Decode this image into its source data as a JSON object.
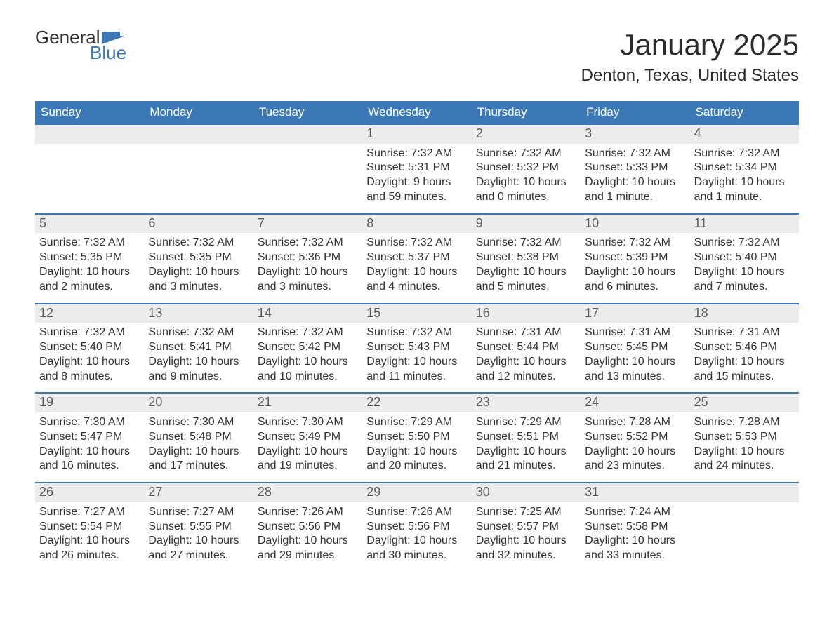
{
  "logo": {
    "text_top": "General",
    "text_bottom": "Blue",
    "accent_color": "#3b78b5"
  },
  "header": {
    "title": "January 2025",
    "location": "Denton, Texas, United States"
  },
  "colors": {
    "header_bg": "#3b78b5",
    "header_text": "#ffffff",
    "daynum_bg": "#ececec",
    "daynum_text": "#5a5a5a",
    "body_text": "#333333",
    "divider": "#3b78b5",
    "background": "#ffffff"
  },
  "typography": {
    "title_fontsize": 42,
    "subtitle_fontsize": 24,
    "weekday_fontsize": 17,
    "daynum_fontsize": 18,
    "body_fontsize": 16,
    "font_family": "Arial"
  },
  "calendar": {
    "type": "month-grid",
    "columns": 7,
    "weekdays": [
      "Sunday",
      "Monday",
      "Tuesday",
      "Wednesday",
      "Thursday",
      "Friday",
      "Saturday"
    ],
    "weeks": [
      [
        null,
        null,
        null,
        {
          "day": "1",
          "sunrise": "Sunrise: 7:32 AM",
          "sunset": "Sunset: 5:31 PM",
          "daylight1": "Daylight: 9 hours",
          "daylight2": "and 59 minutes."
        },
        {
          "day": "2",
          "sunrise": "Sunrise: 7:32 AM",
          "sunset": "Sunset: 5:32 PM",
          "daylight1": "Daylight: 10 hours",
          "daylight2": "and 0 minutes."
        },
        {
          "day": "3",
          "sunrise": "Sunrise: 7:32 AM",
          "sunset": "Sunset: 5:33 PM",
          "daylight1": "Daylight: 10 hours",
          "daylight2": "and 1 minute."
        },
        {
          "day": "4",
          "sunrise": "Sunrise: 7:32 AM",
          "sunset": "Sunset: 5:34 PM",
          "daylight1": "Daylight: 10 hours",
          "daylight2": "and 1 minute."
        }
      ],
      [
        {
          "day": "5",
          "sunrise": "Sunrise: 7:32 AM",
          "sunset": "Sunset: 5:35 PM",
          "daylight1": "Daylight: 10 hours",
          "daylight2": "and 2 minutes."
        },
        {
          "day": "6",
          "sunrise": "Sunrise: 7:32 AM",
          "sunset": "Sunset: 5:35 PM",
          "daylight1": "Daylight: 10 hours",
          "daylight2": "and 3 minutes."
        },
        {
          "day": "7",
          "sunrise": "Sunrise: 7:32 AM",
          "sunset": "Sunset: 5:36 PM",
          "daylight1": "Daylight: 10 hours",
          "daylight2": "and 3 minutes."
        },
        {
          "day": "8",
          "sunrise": "Sunrise: 7:32 AM",
          "sunset": "Sunset: 5:37 PM",
          "daylight1": "Daylight: 10 hours",
          "daylight2": "and 4 minutes."
        },
        {
          "day": "9",
          "sunrise": "Sunrise: 7:32 AM",
          "sunset": "Sunset: 5:38 PM",
          "daylight1": "Daylight: 10 hours",
          "daylight2": "and 5 minutes."
        },
        {
          "day": "10",
          "sunrise": "Sunrise: 7:32 AM",
          "sunset": "Sunset: 5:39 PM",
          "daylight1": "Daylight: 10 hours",
          "daylight2": "and 6 minutes."
        },
        {
          "day": "11",
          "sunrise": "Sunrise: 7:32 AM",
          "sunset": "Sunset: 5:40 PM",
          "daylight1": "Daylight: 10 hours",
          "daylight2": "and 7 minutes."
        }
      ],
      [
        {
          "day": "12",
          "sunrise": "Sunrise: 7:32 AM",
          "sunset": "Sunset: 5:40 PM",
          "daylight1": "Daylight: 10 hours",
          "daylight2": "and 8 minutes."
        },
        {
          "day": "13",
          "sunrise": "Sunrise: 7:32 AM",
          "sunset": "Sunset: 5:41 PM",
          "daylight1": "Daylight: 10 hours",
          "daylight2": "and 9 minutes."
        },
        {
          "day": "14",
          "sunrise": "Sunrise: 7:32 AM",
          "sunset": "Sunset: 5:42 PM",
          "daylight1": "Daylight: 10 hours",
          "daylight2": "and 10 minutes."
        },
        {
          "day": "15",
          "sunrise": "Sunrise: 7:32 AM",
          "sunset": "Sunset: 5:43 PM",
          "daylight1": "Daylight: 10 hours",
          "daylight2": "and 11 minutes."
        },
        {
          "day": "16",
          "sunrise": "Sunrise: 7:31 AM",
          "sunset": "Sunset: 5:44 PM",
          "daylight1": "Daylight: 10 hours",
          "daylight2": "and 12 minutes."
        },
        {
          "day": "17",
          "sunrise": "Sunrise: 7:31 AM",
          "sunset": "Sunset: 5:45 PM",
          "daylight1": "Daylight: 10 hours",
          "daylight2": "and 13 minutes."
        },
        {
          "day": "18",
          "sunrise": "Sunrise: 7:31 AM",
          "sunset": "Sunset: 5:46 PM",
          "daylight1": "Daylight: 10 hours",
          "daylight2": "and 15 minutes."
        }
      ],
      [
        {
          "day": "19",
          "sunrise": "Sunrise: 7:30 AM",
          "sunset": "Sunset: 5:47 PM",
          "daylight1": "Daylight: 10 hours",
          "daylight2": "and 16 minutes."
        },
        {
          "day": "20",
          "sunrise": "Sunrise: 7:30 AM",
          "sunset": "Sunset: 5:48 PM",
          "daylight1": "Daylight: 10 hours",
          "daylight2": "and 17 minutes."
        },
        {
          "day": "21",
          "sunrise": "Sunrise: 7:30 AM",
          "sunset": "Sunset: 5:49 PM",
          "daylight1": "Daylight: 10 hours",
          "daylight2": "and 19 minutes."
        },
        {
          "day": "22",
          "sunrise": "Sunrise: 7:29 AM",
          "sunset": "Sunset: 5:50 PM",
          "daylight1": "Daylight: 10 hours",
          "daylight2": "and 20 minutes."
        },
        {
          "day": "23",
          "sunrise": "Sunrise: 7:29 AM",
          "sunset": "Sunset: 5:51 PM",
          "daylight1": "Daylight: 10 hours",
          "daylight2": "and 21 minutes."
        },
        {
          "day": "24",
          "sunrise": "Sunrise: 7:28 AM",
          "sunset": "Sunset: 5:52 PM",
          "daylight1": "Daylight: 10 hours",
          "daylight2": "and 23 minutes."
        },
        {
          "day": "25",
          "sunrise": "Sunrise: 7:28 AM",
          "sunset": "Sunset: 5:53 PM",
          "daylight1": "Daylight: 10 hours",
          "daylight2": "and 24 minutes."
        }
      ],
      [
        {
          "day": "26",
          "sunrise": "Sunrise: 7:27 AM",
          "sunset": "Sunset: 5:54 PM",
          "daylight1": "Daylight: 10 hours",
          "daylight2": "and 26 minutes."
        },
        {
          "day": "27",
          "sunrise": "Sunrise: 7:27 AM",
          "sunset": "Sunset: 5:55 PM",
          "daylight1": "Daylight: 10 hours",
          "daylight2": "and 27 minutes."
        },
        {
          "day": "28",
          "sunrise": "Sunrise: 7:26 AM",
          "sunset": "Sunset: 5:56 PM",
          "daylight1": "Daylight: 10 hours",
          "daylight2": "and 29 minutes."
        },
        {
          "day": "29",
          "sunrise": "Sunrise: 7:26 AM",
          "sunset": "Sunset: 5:56 PM",
          "daylight1": "Daylight: 10 hours",
          "daylight2": "and 30 minutes."
        },
        {
          "day": "30",
          "sunrise": "Sunrise: 7:25 AM",
          "sunset": "Sunset: 5:57 PM",
          "daylight1": "Daylight: 10 hours",
          "daylight2": "and 32 minutes."
        },
        {
          "day": "31",
          "sunrise": "Sunrise: 7:24 AM",
          "sunset": "Sunset: 5:58 PM",
          "daylight1": "Daylight: 10 hours",
          "daylight2": "and 33 minutes."
        },
        null
      ]
    ]
  }
}
